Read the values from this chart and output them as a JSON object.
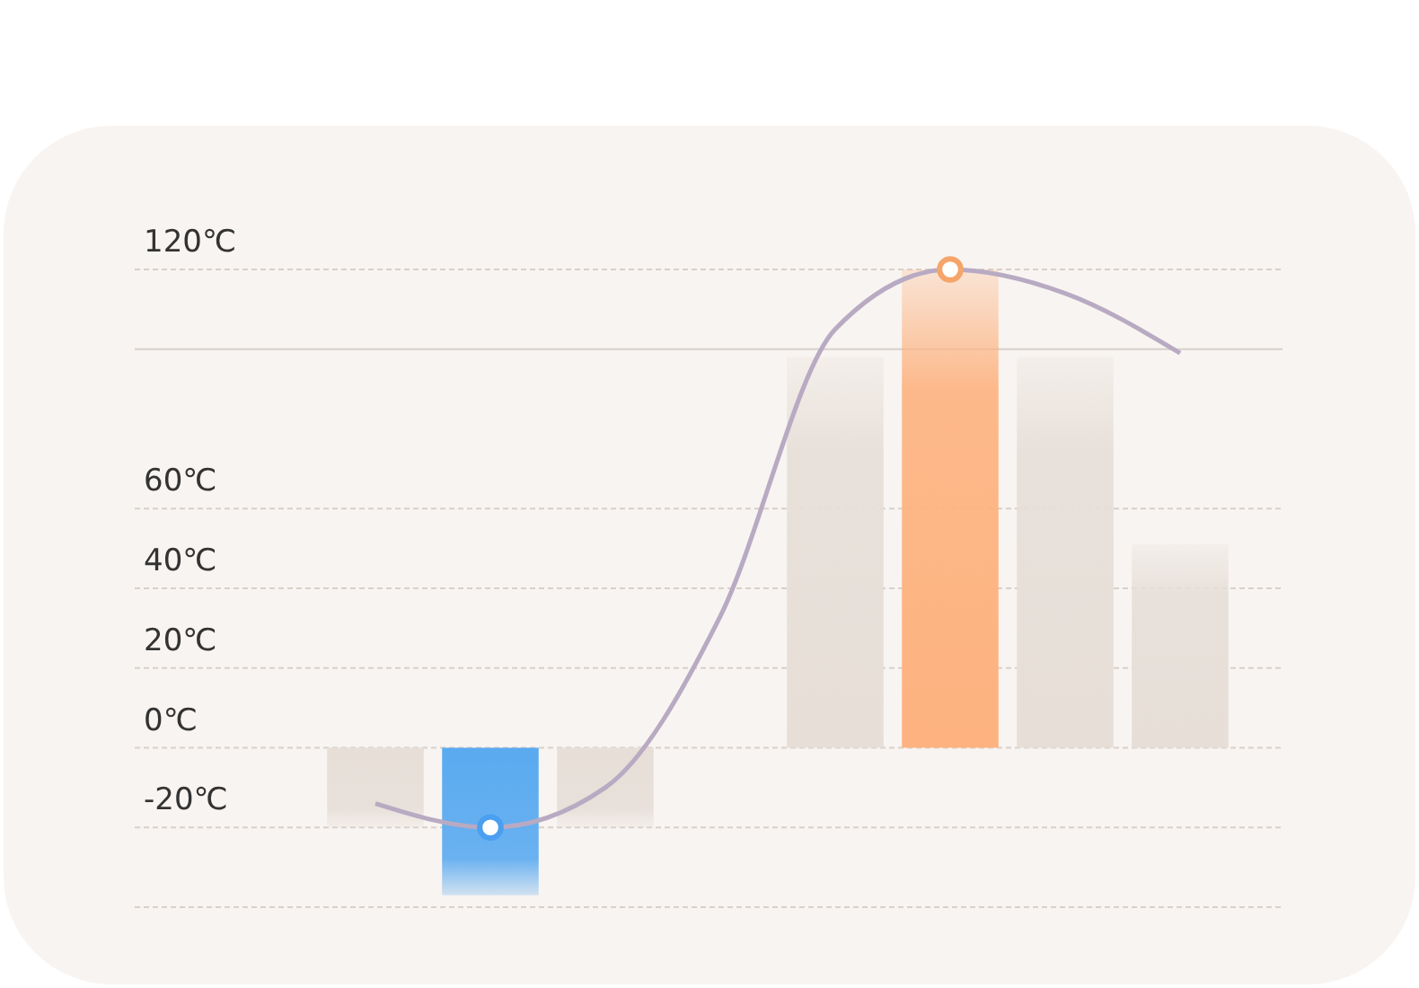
{
  "chart_data": {
    "type": "bar",
    "categories": [
      null,
      null,
      null,
      null,
      null,
      null,
      null,
      null
    ],
    "series": [
      {
        "colors": [
          "#e6ded7",
          "#5aaaf0",
          "#e6ded7",
          "#e6ded7",
          "#e6ded7",
          "#fdb27f",
          "#e6ded7",
          "#e6ded7"
        ],
        "values": [
          -20,
          -37,
          -20,
          null,
          98,
          120,
          98,
          51
        ]
      },
      {
        "type": "line",
        "color": "#b8aac2",
        "marker": "none",
        "values": [
          -14,
          -20,
          -10,
          33,
          105,
          120,
          114,
          99
        ]
      },
      {
        "type": "scatter",
        "color": "#4a9ff0",
        "marker": "circle",
        "values": [
          null,
          -20,
          null,
          null,
          null,
          null,
          null,
          null
        ]
      },
      {
        "type": "scatter",
        "color": "#f5a56a",
        "marker": "circle",
        "values": [
          null,
          null,
          null,
          null,
          null,
          120,
          null,
          null
        ]
      }
    ],
    "ylim": [
      -40,
      120
    ],
    "yticks": [
      {
        "value": -40,
        "label": null
      },
      {
        "value": -20,
        "label": "-20℃"
      },
      {
        "value": 0,
        "label": "0℃"
      },
      {
        "value": 20,
        "label": "20℃"
      },
      {
        "value": 40,
        "label": "40℃"
      },
      {
        "value": 60,
        "label": "60℃"
      },
      {
        "value": 120,
        "label": "120℃"
      }
    ],
    "ref_lines": [
      {
        "axis": "y",
        "value": 100,
        "color": "#d8d0ca"
      }
    ],
    "tick_labels": "y",
    "grid": "y"
  }
}
